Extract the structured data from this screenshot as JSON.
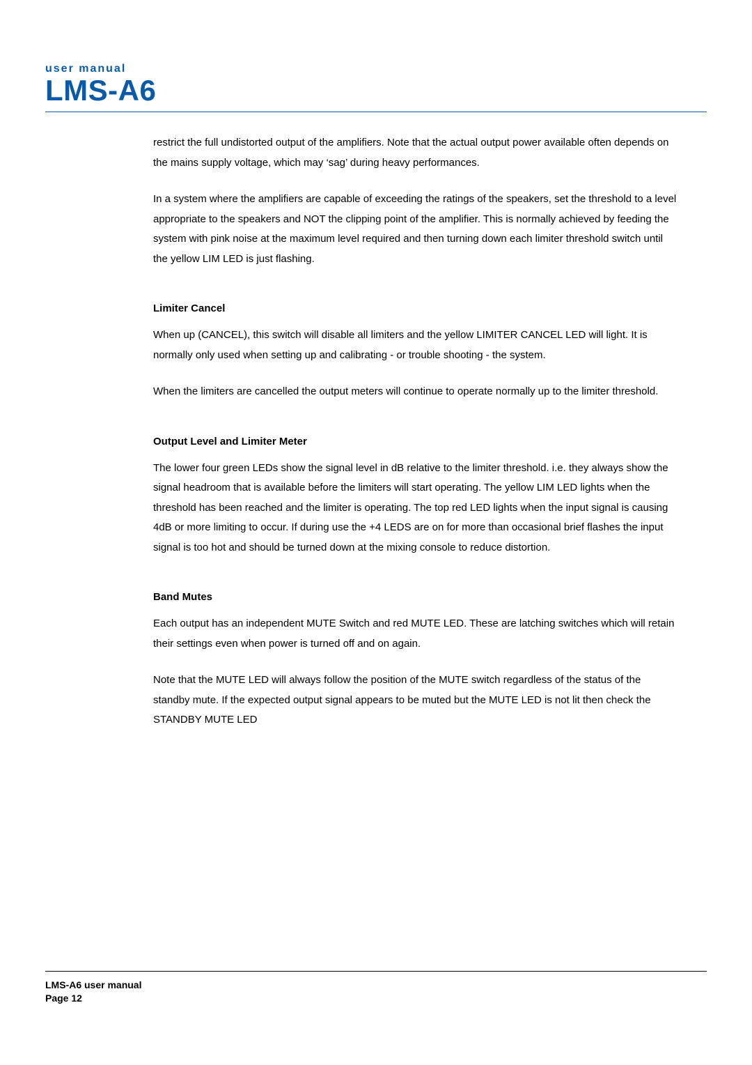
{
  "header": {
    "small": "user manual",
    "large": "LMS-A6"
  },
  "colors": {
    "brand": "#0a5aa8",
    "text": "#000000",
    "bg": "#ffffff"
  },
  "typography": {
    "header_small_fontsize": 16,
    "header_large_fontsize": 42,
    "body_fontsize": 15,
    "section_title_fontsize": 15,
    "footer_fontsize": 14,
    "line_height": 1.9
  },
  "content": {
    "intro_para_1": "restrict the full undistorted output of the amplifiers. Note that the actual output power available often depends on the mains supply voltage, which may ‘sag’ during heavy performances.",
    "intro_para_2": "In a system where the amplifiers are capable of exceeding the ratings of the speakers, set the threshold to a level appropriate to the speakers and NOT the clipping point of the amplifier. This is normally achieved by feeding the system with pink noise at the maximum level required and then turning down each limiter threshold switch until the yellow LIM LED is just flashing.",
    "sections": [
      {
        "title": "Limiter Cancel",
        "paragraphs": [
          "When up (CANCEL), this switch will disable all limiters and the yellow LIMITER CANCEL LED will light. It is normally only used when setting up and calibrating - or trouble shooting - the system.",
          "When the limiters are cancelled the output meters will continue to operate normally up to the limiter threshold."
        ]
      },
      {
        "title": "Output Level and Limiter Meter",
        "paragraphs": [
          "The lower four green LEDs show the signal level in dB relative to the limiter threshold. i.e. they always show the signal headroom that is available before the limiters will start operating. The yellow LIM LED lights when the threshold has been reached and the limiter is operating. The top red LED lights when the input signal is causing 4dB or more limiting to occur. If during use the +4 LEDS are on for more than occasional brief flashes the input signal is too hot and should be turned down at the mixing console to reduce distortion."
        ]
      },
      {
        "title": "Band Mutes",
        "paragraphs": [
          "Each output has an independent MUTE Switch and red MUTE LED. These are latching switches which will retain their settings even when power is turned off and on again.",
          "Note that the MUTE LED will always follow the position of the MUTE switch regardless of the status of the standby mute. If the expected output signal appears to be muted but the MUTE LED is not lit then check the STANDBY MUTE LED"
        ]
      }
    ]
  },
  "footer": {
    "line1": "LMS-A6 user manual",
    "line2": "Page 12"
  }
}
